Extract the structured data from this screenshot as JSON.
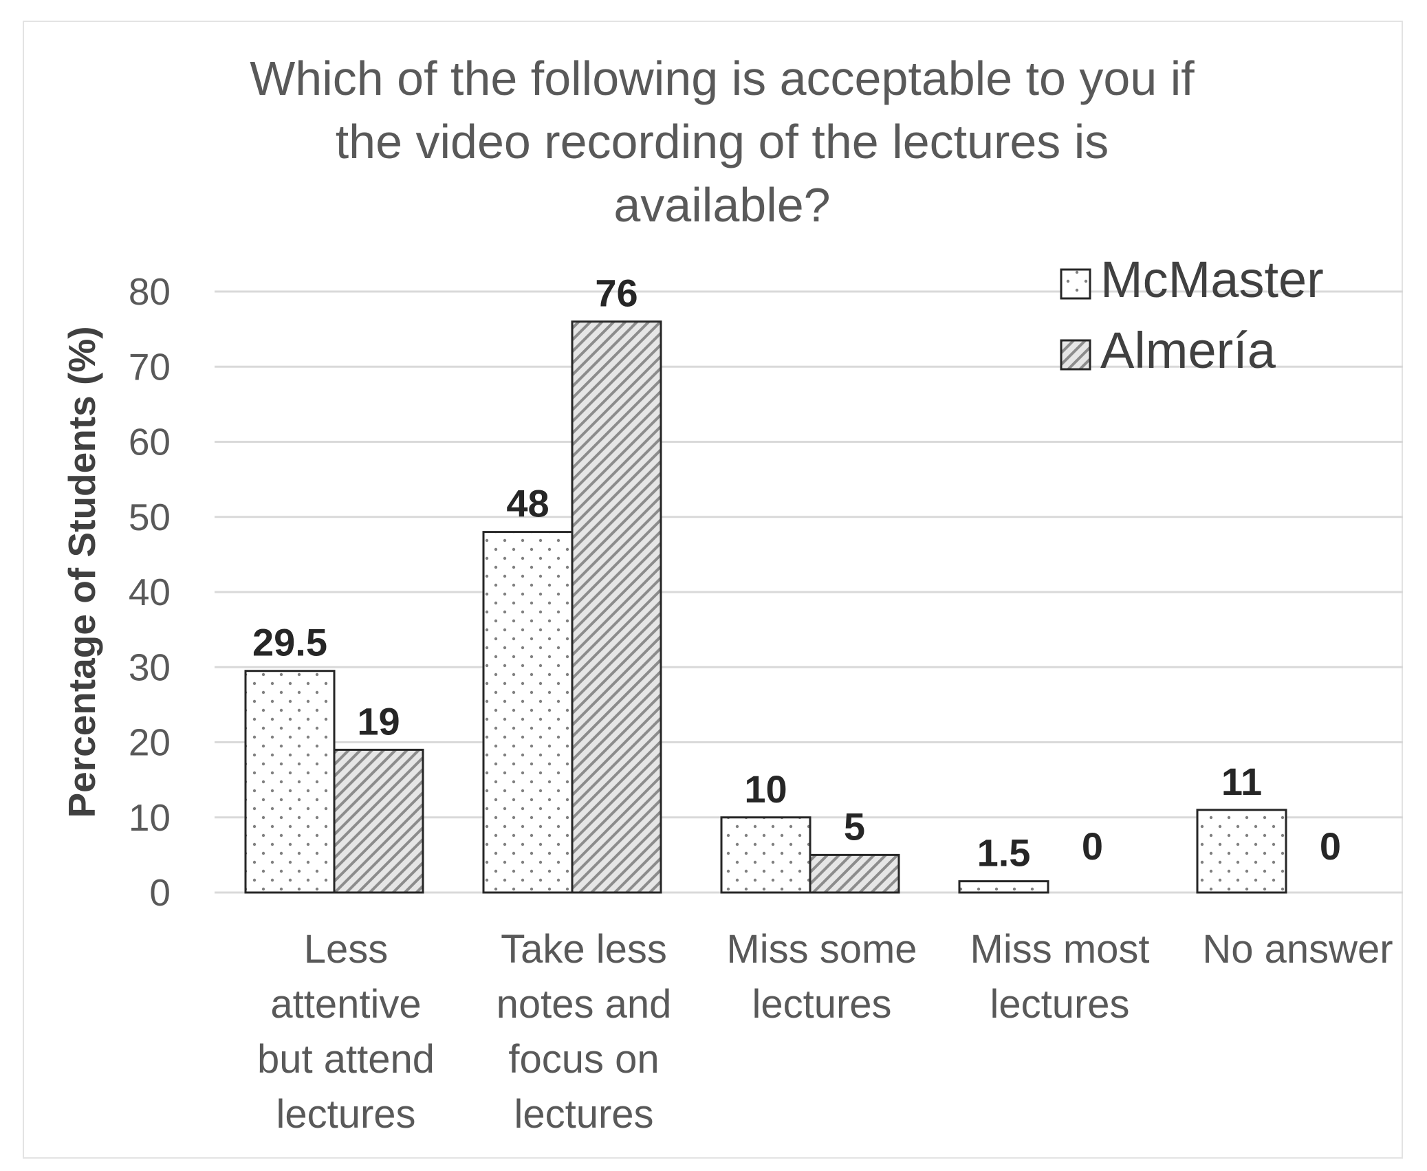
{
  "chart_data": {
    "type": "bar",
    "title": "Which of the following is acceptable to you if\nthe video recording of the lectures is\navailable?",
    "ylabel": "Percentage of Students (%)",
    "xlabel": "",
    "ylim": [
      0,
      80
    ],
    "yticks": [
      0,
      10,
      20,
      30,
      40,
      50,
      60,
      70,
      80
    ],
    "grid": true,
    "legend_position": "top-right",
    "categories": [
      [
        "Less",
        "attentive",
        "but attend",
        "lectures"
      ],
      [
        "Take less",
        "notes and",
        "focus on",
        "lectures"
      ],
      [
        "Miss some",
        "lectures"
      ],
      [
        "Miss most",
        "lectures"
      ],
      [
        "No answer"
      ]
    ],
    "series": [
      {
        "name": "McMaster",
        "pattern": "dots",
        "values": [
          29.5,
          48,
          10,
          1.5,
          11
        ],
        "value_labels": [
          "29.5",
          "48",
          "10",
          "1.5",
          "11"
        ]
      },
      {
        "name": "Almería",
        "pattern": "diagonal-hatch",
        "values": [
          19,
          76,
          5,
          0,
          0
        ],
        "value_labels": [
          "19",
          "76",
          "5",
          "0",
          "0"
        ]
      }
    ],
    "colors": {
      "grid": "#d9d9d9",
      "bar_outline": "#262626",
      "hatch": "#8c8c8c",
      "dots": "#808080",
      "text": "#595959"
    }
  }
}
